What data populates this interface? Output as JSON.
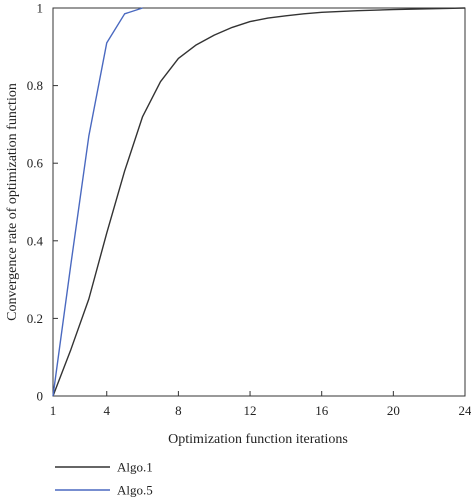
{
  "chart_data": {
    "type": "line",
    "xlabel": "Optimization function iterations",
    "ylabel": "Convergence rate of optimization function",
    "xlim": [
      1,
      24
    ],
    "ylim": [
      0,
      1
    ],
    "x_ticks": [
      1,
      4,
      8,
      12,
      16,
      20,
      24
    ],
    "y_ticks": [
      0,
      0.2,
      0.4,
      0.6,
      0.8,
      1
    ],
    "y_tick_labels": [
      "0",
      "0.2",
      "0.4",
      "0.6",
      "0.8",
      "1"
    ],
    "grid": false,
    "legend_position": "bottom-left, below the plot",
    "series": [
      {
        "name": "Algo.1",
        "color": "#333333",
        "x": [
          1,
          2,
          3,
          4,
          5,
          6,
          7,
          8,
          9,
          10,
          11,
          12,
          13,
          14,
          15,
          16,
          18,
          20,
          22,
          24
        ],
        "values": [
          0,
          0.12,
          0.25,
          0.42,
          0.58,
          0.72,
          0.81,
          0.87,
          0.905,
          0.93,
          0.95,
          0.965,
          0.974,
          0.98,
          0.985,
          0.989,
          0.993,
          0.996,
          0.998,
          1.0
        ]
      },
      {
        "name": "Algo.5",
        "color": "#4a69c0",
        "x": [
          1,
          2,
          3,
          4,
          5,
          6
        ],
        "values": [
          0,
          0.34,
          0.67,
          0.91,
          0.985,
          1.0
        ]
      }
    ]
  }
}
